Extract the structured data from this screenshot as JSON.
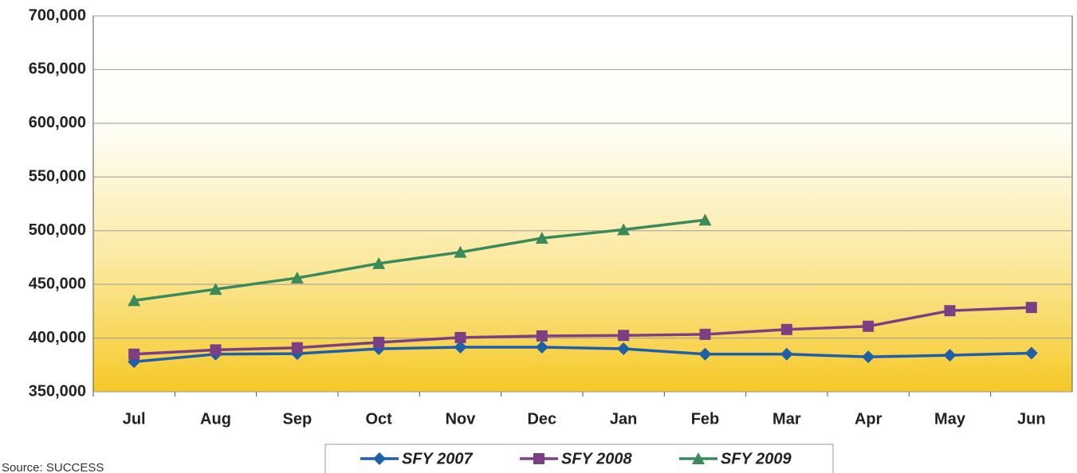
{
  "chart_data": {
    "type": "line",
    "categories": [
      "Jul",
      "Aug",
      "Sep",
      "Oct",
      "Nov",
      "Dec",
      "Jan",
      "Feb",
      "Mar",
      "Apr",
      "May",
      "Jun"
    ],
    "series": [
      {
        "name": "SFY 2007",
        "color": "#1f5fa8",
        "marker": "diamond",
        "values": [
          378000,
          385000,
          385500,
          390000,
          391500,
          391500,
          390000,
          385000,
          385000,
          382500,
          384000,
          386000
        ]
      },
      {
        "name": "SFY 2008",
        "color": "#7b3f84",
        "marker": "square",
        "values": [
          385000,
          389000,
          391000,
          396000,
          400500,
          402000,
          402500,
          403500,
          408000,
          411000,
          425500,
          428500
        ]
      },
      {
        "name": "SFY 2009",
        "color": "#3a8a5a",
        "marker": "triangle",
        "values": [
          435000,
          445500,
          456000,
          469500,
          480000,
          493000,
          501000,
          510000,
          null,
          null,
          null,
          null
        ]
      }
    ],
    "ylim": [
      350000,
      700000
    ],
    "yticks": [
      {
        "value": 350000,
        "label": "350,000"
      },
      {
        "value": 400000,
        "label": "400,000"
      },
      {
        "value": 450000,
        "label": "450,000"
      },
      {
        "value": 500000,
        "label": "500,000"
      },
      {
        "value": 550000,
        "label": "550,000"
      },
      {
        "value": 600000,
        "label": "600,000"
      },
      {
        "value": 650000,
        "label": "650,000"
      },
      {
        "value": 700000,
        "label": "700,000"
      }
    ],
    "grid": true,
    "legend": "bottom",
    "source": "Source: SUCCESS"
  }
}
